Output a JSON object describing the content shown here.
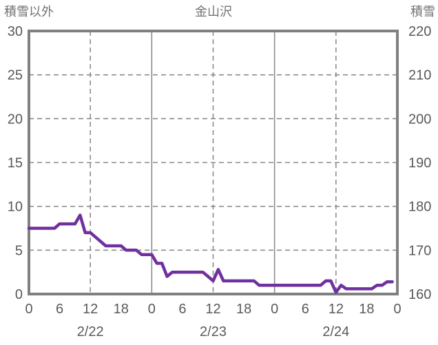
{
  "chart_data": {
    "type": "line",
    "title": "金山沢",
    "left_axis": {
      "title": "積雪以外",
      "min": 0,
      "max": 30,
      "step": 5,
      "ticks": [
        "0",
        "5",
        "10",
        "15",
        "20",
        "25",
        "30"
      ]
    },
    "right_axis": {
      "title": "積雪",
      "min": 160,
      "max": 220,
      "step": 10,
      "ticks": [
        "160",
        "170",
        "180",
        "190",
        "200",
        "210",
        "220"
      ]
    },
    "x_axis": {
      "hours_total": 72,
      "tick_interval_hours": 6,
      "tick_labels": [
        "0",
        "6",
        "12",
        "18",
        "0",
        "6",
        "12",
        "18",
        "0",
        "6",
        "12",
        "18",
        "0"
      ],
      "date_labels": [
        {
          "label": "2/22",
          "hour": 12
        },
        {
          "label": "2/23",
          "hour": 36
        },
        {
          "label": "2/24",
          "hour": 60
        }
      ],
      "gridlines": {
        "solid_every_hours": 24,
        "dashed_every_hours": 12
      }
    },
    "series": [
      {
        "name": "積雪以外",
        "axis": "left",
        "color": "#7030A0",
        "x_start_hour": 0,
        "x_step_hours": 1,
        "values": [
          7.5,
          7.5,
          7.5,
          7.5,
          7.5,
          7.5,
          8,
          8,
          8,
          8,
          9,
          7,
          7,
          6.5,
          6,
          5.5,
          5.5,
          5.5,
          5.5,
          5,
          5,
          5,
          4.5,
          4.5,
          4.5,
          3.5,
          3.5,
          2,
          2.5,
          2.5,
          2.5,
          2.5,
          2.5,
          2.5,
          2.5,
          2,
          1.5,
          2.8,
          1.5,
          1.5,
          1.5,
          1.5,
          1.5,
          1.5,
          1.5,
          1,
          1,
          1,
          1,
          1,
          1,
          1,
          1,
          1,
          1,
          1,
          1,
          1,
          1.5,
          1.5,
          0.2,
          1,
          0.6,
          0.6,
          0.6,
          0.6,
          0.6,
          0.6,
          1,
          1,
          1.4,
          1.4
        ]
      }
    ],
    "legend": "none",
    "colors": {
      "line": "#7030A0",
      "frame": "#808080",
      "grid": "#8C8C8C",
      "tick_text": "#595959",
      "title_text": "#737373"
    }
  }
}
